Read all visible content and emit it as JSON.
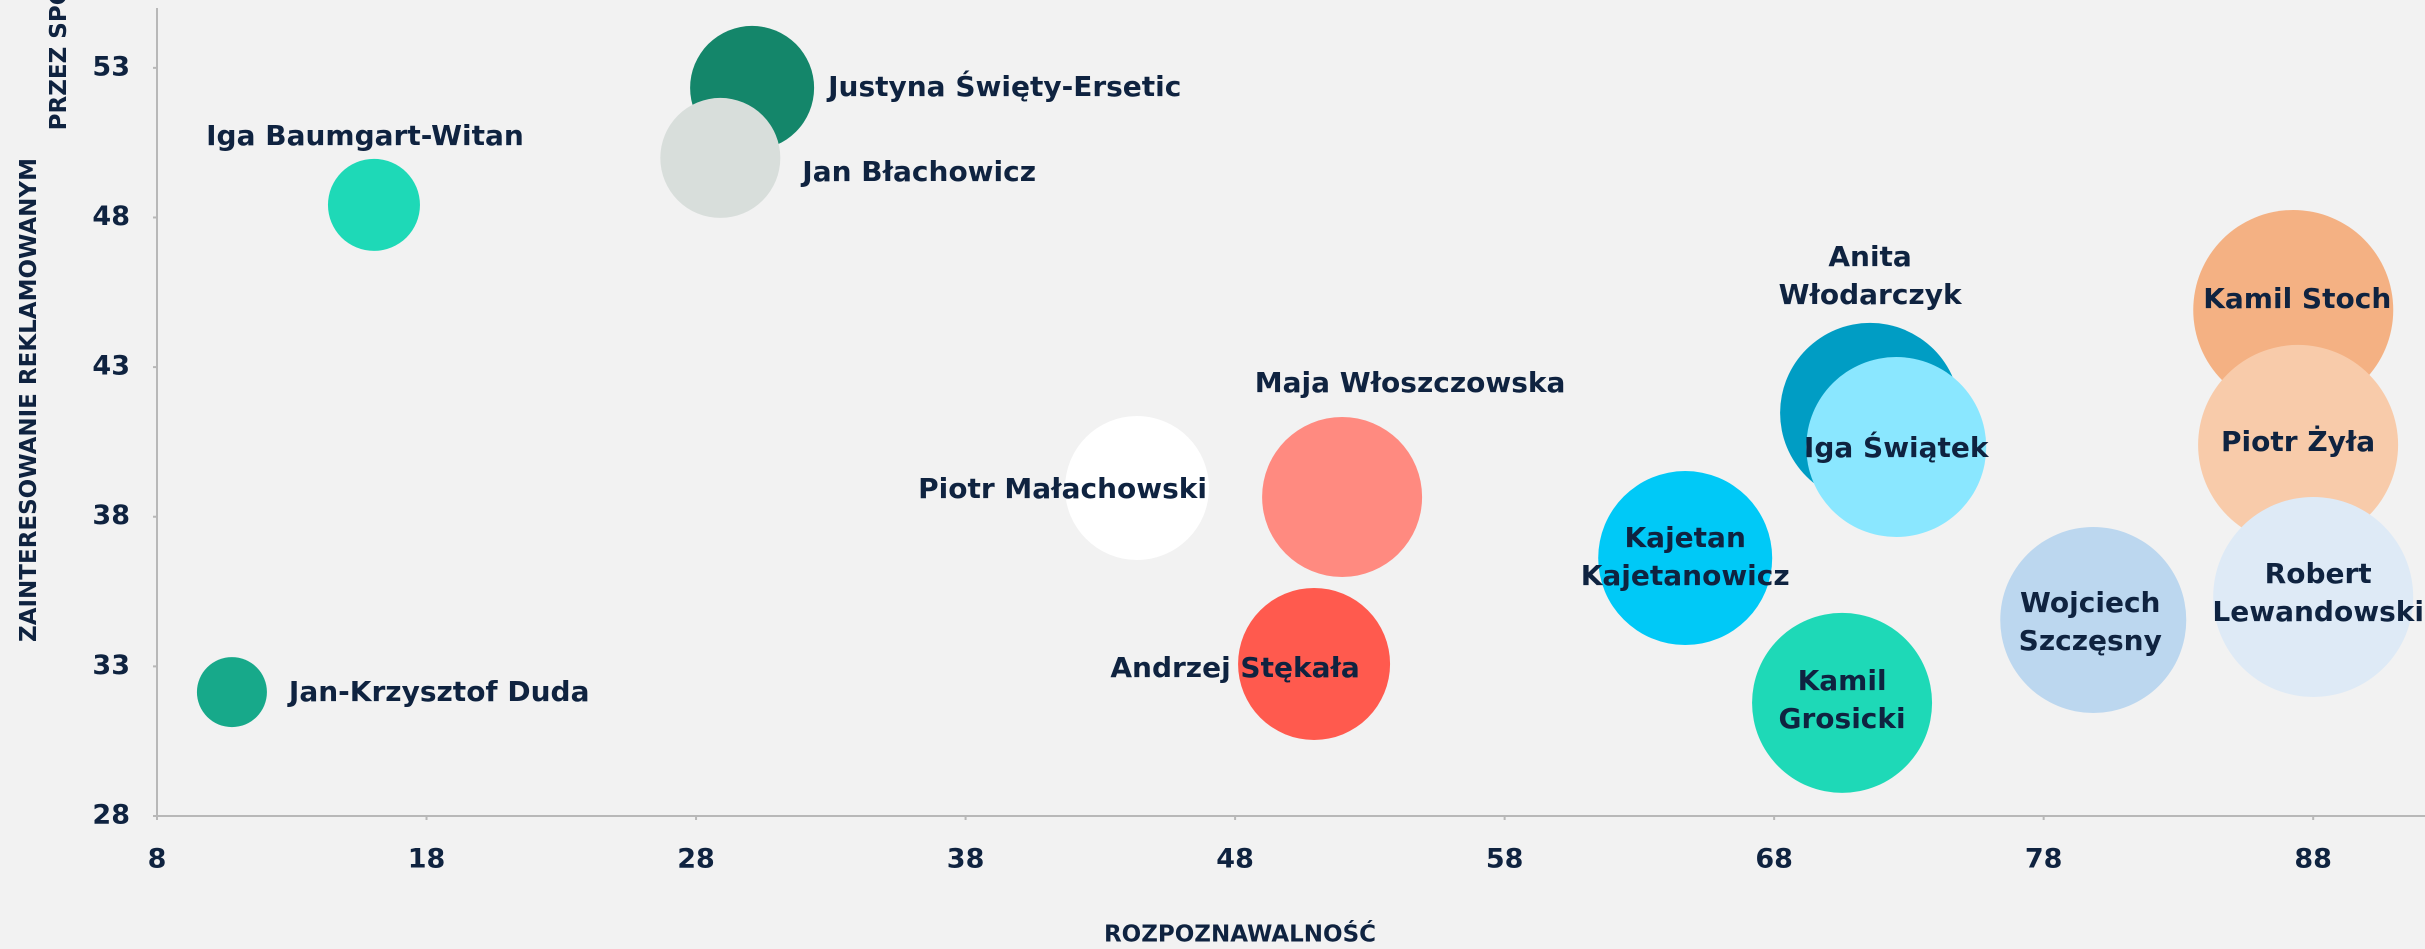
{
  "chart_data": {
    "type": "bubble",
    "xlabel": "ROZPOZNAWALNOŚĆ",
    "ylabel": "ZAINTERESOWANIE REKLAMOWANYM PRZEZ SPORTOWCA PRODUKTEM",
    "xlim": [
      8,
      92
    ],
    "ylim": [
      28,
      55
    ],
    "xticks": [
      8,
      18,
      28,
      38,
      48,
      58,
      68,
      78,
      88
    ],
    "yticks": [
      28,
      33,
      38,
      43,
      48,
      53
    ],
    "grid": false,
    "points": [
      {
        "name": "Iga Baumgart-Witan",
        "x": 16.05,
        "y": 48.42,
        "size": 46,
        "color": "#1ed9b7"
      },
      {
        "name": "Justyna Święty-Ersetic",
        "x": 30.08,
        "y": 52.33,
        "size": 62,
        "color": "#14866a"
      },
      {
        "name": "Jan Błachowicz",
        "x": 28.9,
        "y": 49.99,
        "size": 60,
        "color": "#d8dedb"
      },
      {
        "name": "Jan-Krzysztof Duda",
        "x": 10.78,
        "y": 32.14,
        "size": 35,
        "color": "#17a98a"
      },
      {
        "name": "Piotr Małachowski",
        "x": 44.36,
        "y": 38.96,
        "size": 72,
        "color": "#ffffff"
      },
      {
        "name": "Maja Włoszczowska",
        "x": 51.97,
        "y": 38.66,
        "size": 80,
        "color": "#ff8a80"
      },
      {
        "name": "Andrzej Stękała",
        "x": 50.93,
        "y": 33.08,
        "size": 76,
        "color": "#ff5a4e"
      },
      {
        "name": "Kajetan Kajetanowicz",
        "x": 64.7,
        "y": 36.62,
        "size": 87,
        "color": "#00c9f7"
      },
      {
        "name": "Anita Włodarczyk",
        "x": 71.56,
        "y": 41.47,
        "size": 90,
        "color": "#009dc4"
      },
      {
        "name": "Iga Świątek",
        "x": 72.53,
        "y": 40.33,
        "size": 90,
        "color": "#8ae7ff"
      },
      {
        "name": "Kamil Grosicki",
        "x": 70.52,
        "y": 31.78,
        "size": 90,
        "color": "#1ed9b7"
      },
      {
        "name": "Wojciech Szczęsny",
        "x": 79.84,
        "y": 34.55,
        "size": 93,
        "color": "#bcd7ef"
      },
      {
        "name": "Kamil Stoch",
        "x": 87.26,
        "y": 44.91,
        "size": 100,
        "color": "#f4b183"
      },
      {
        "name": "Piotr Żyła",
        "x": 87.44,
        "y": 40.4,
        "size": 100,
        "color": "#f8cbaa"
      },
      {
        "name": "Robert Lewandowski",
        "x": 88,
        "y": 35.32,
        "size": 100,
        "color": "#deeaf6"
      }
    ]
  }
}
